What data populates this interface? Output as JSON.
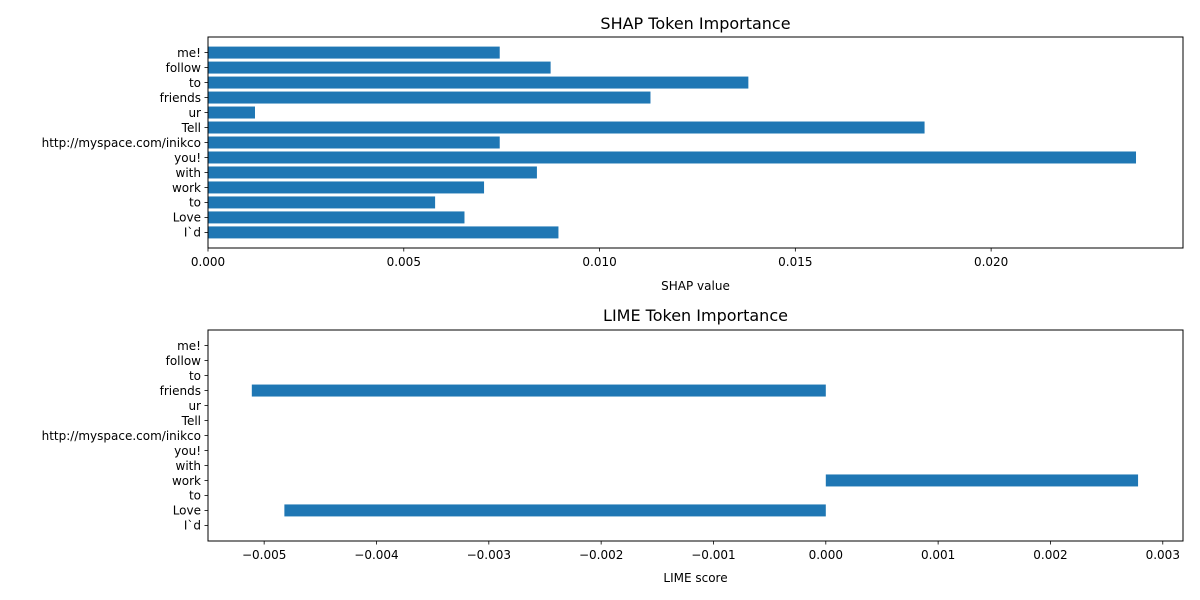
{
  "chart_data": [
    {
      "type": "bar",
      "orientation": "horizontal",
      "title": "SHAP Token Importance",
      "xlabel": "SHAP value",
      "ylabel": "",
      "categories": [
        "I`d",
        "Love",
        "to",
        "work",
        "with",
        "you!",
        "http://myspace.com/inikco",
        "Tell",
        "ur",
        "friends",
        "to",
        "follow",
        "me!"
      ],
      "values": [
        0.00895,
        0.00655,
        0.0058,
        0.00705,
        0.0084,
        0.0237,
        0.00745,
        0.0183,
        0.0012,
        0.0113,
        0.0138,
        0.00875,
        0.00745
      ],
      "xlim": [
        0,
        0.0249
      ],
      "xticks": [
        0,
        0.005,
        0.01,
        0.015,
        0.02
      ],
      "xtick_labels": [
        "0.000",
        "0.005",
        "0.010",
        "0.015",
        "0.020"
      ],
      "grid": false,
      "color": "#1f77b4"
    },
    {
      "type": "bar",
      "orientation": "horizontal",
      "title": "LIME Token Importance",
      "xlabel": "LIME score",
      "ylabel": "",
      "categories": [
        "I`d",
        "Love",
        "to",
        "work",
        "with",
        "you!",
        "http://myspace.com/inikco",
        "Tell",
        "ur",
        "friends",
        "to",
        "follow",
        "me!"
      ],
      "values": [
        0,
        -0.00482,
        0,
        0.00278,
        0,
        0,
        0,
        0,
        0,
        -0.00511,
        0,
        0,
        0
      ],
      "xlim": [
        -0.0055,
        0.00318
      ],
      "xticks": [
        -0.005,
        -0.004,
        -0.003,
        -0.002,
        -0.001,
        0,
        0.001,
        0.002,
        0.003
      ],
      "xtick_labels": [
        "−0.005",
        "−0.004",
        "−0.003",
        "−0.002",
        "−0.001",
        "0.000",
        "0.001",
        "0.002",
        "0.003"
      ],
      "grid": false,
      "color": "#1f77b4"
    }
  ]
}
